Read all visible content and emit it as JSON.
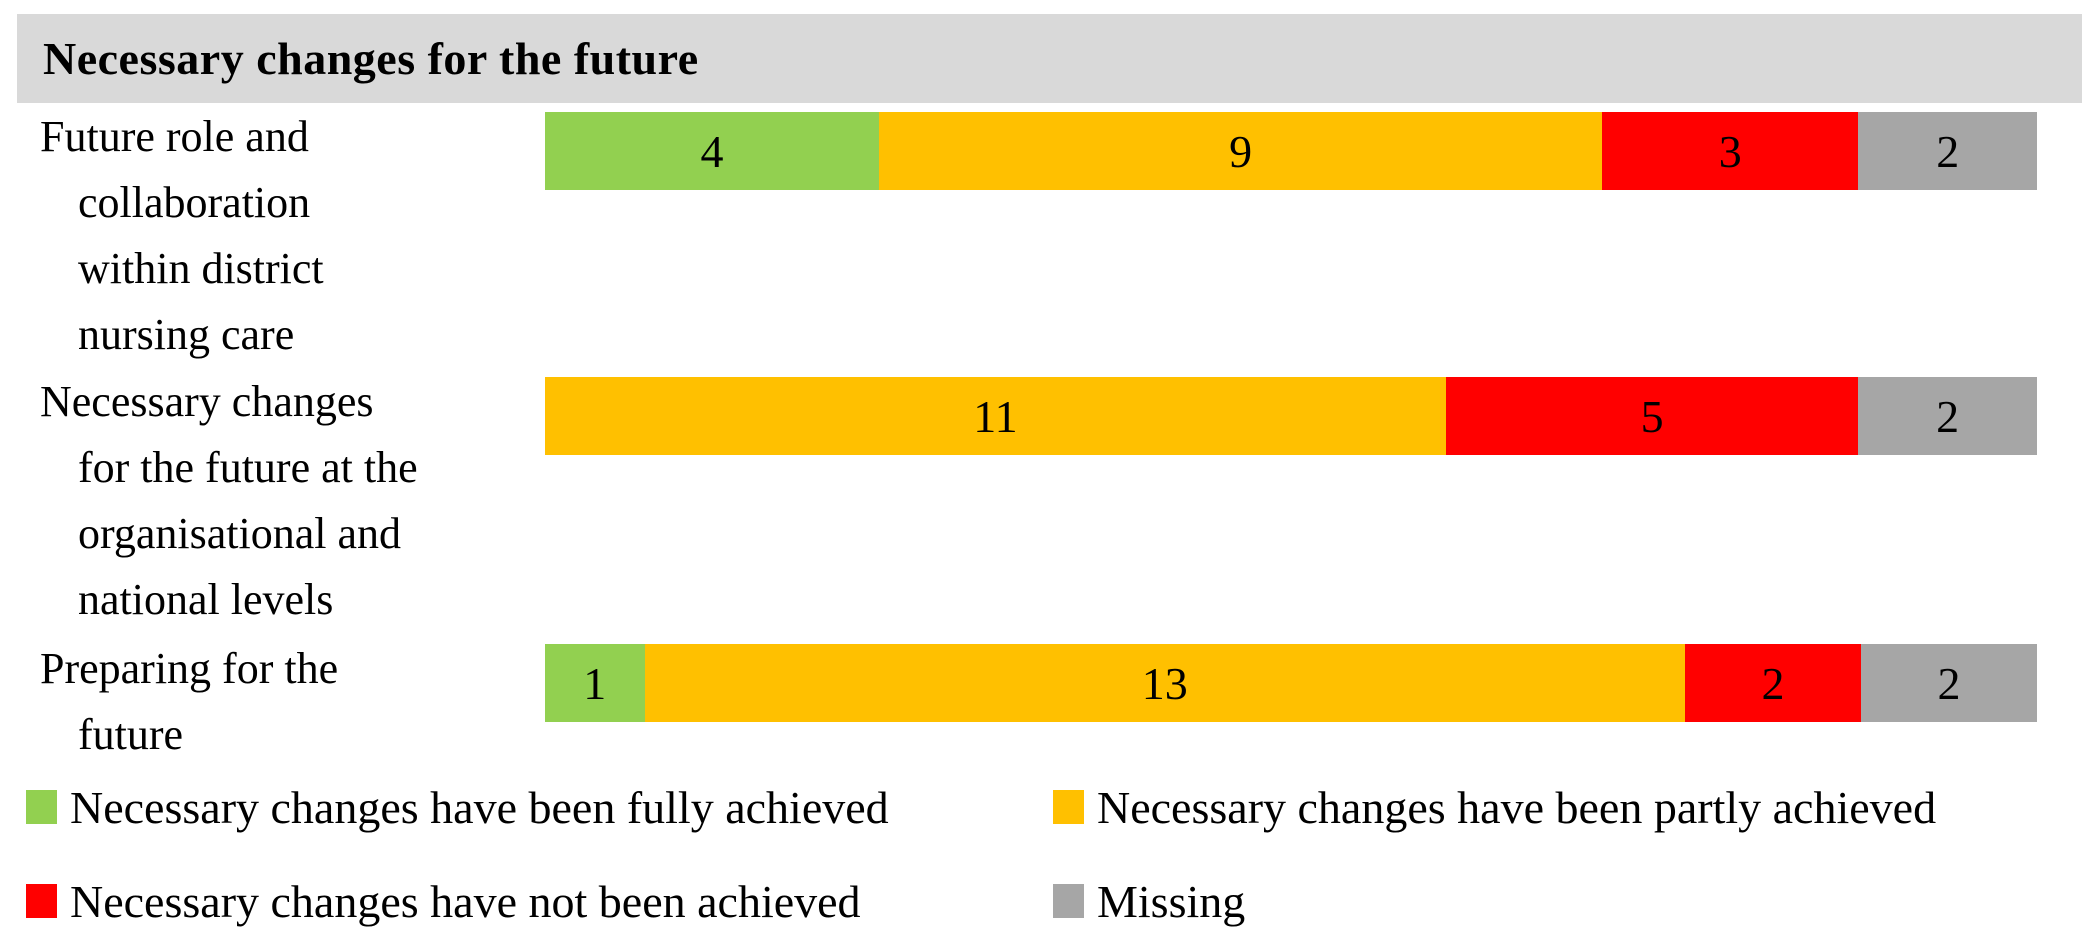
{
  "header": {
    "title": "Necessary changes for the future"
  },
  "chart_data": {
    "type": "bar",
    "subtype": "horizontal-stacked",
    "title": "Necessary changes for the future",
    "xlabel": "",
    "ylabel": "",
    "xlim": [
      0,
      18
    ],
    "grid": false,
    "legend_position": "bottom",
    "value_labels": "inside-center",
    "categories": [
      {
        "label": "Future role and collaboration within district nursing care",
        "label_lines": [
          "Future role and",
          "collaboration",
          "within district",
          "nursing care"
        ]
      },
      {
        "label": "Necessary changes for the future at the organisational and national levels",
        "label_lines": [
          "Necessary changes",
          "for the future at the",
          "organisational and",
          "national levels"
        ]
      },
      {
        "label": "Preparing for the future",
        "label_lines": [
          "Preparing for the",
          "future"
        ]
      }
    ],
    "series": [
      {
        "name": "Necessary changes have been fully achieved",
        "color": "#92D050",
        "values": [
          4,
          0,
          1
        ]
      },
      {
        "name": "Necessary changes have been partly achieved",
        "color": "#FFC000",
        "values": [
          9,
          11,
          13
        ]
      },
      {
        "name": "Necessary changes have not been achieved",
        "color": "#FF0000",
        "values": [
          3,
          5,
          2
        ]
      },
      {
        "name": "Missing",
        "color": "#A6A6A6",
        "values": [
          2,
          2,
          2
        ]
      }
    ],
    "row_totals": [
      18,
      18,
      18
    ]
  },
  "colors": {
    "header_bg": "#D9D9D9",
    "background": "#FFFFFF",
    "text": "#000000"
  }
}
